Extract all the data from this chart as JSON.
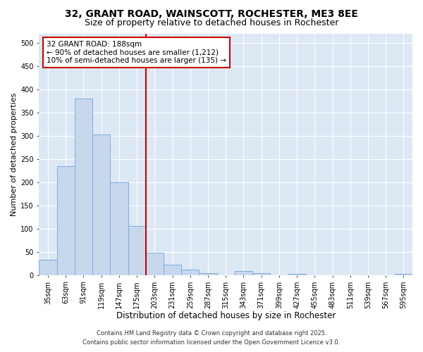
{
  "title_line1": "32, GRANT ROAD, WAINSCOTT, ROCHESTER, ME3 8EE",
  "title_line2": "Size of property relative to detached houses in Rochester",
  "xlabel": "Distribution of detached houses by size in Rochester",
  "ylabel": "Number of detached properties",
  "categories": [
    "35sqm",
    "63sqm",
    "91sqm",
    "119sqm",
    "147sqm",
    "175sqm",
    "203sqm",
    "231sqm",
    "259sqm",
    "287sqm",
    "315sqm",
    "343sqm",
    "371sqm",
    "399sqm",
    "427sqm",
    "455sqm",
    "483sqm",
    "511sqm",
    "539sqm",
    "567sqm",
    "595sqm"
  ],
  "values": [
    33,
    235,
    380,
    302,
    200,
    106,
    48,
    22,
    12,
    5,
    0,
    9,
    4,
    0,
    2,
    0,
    0,
    0,
    0,
    0,
    3
  ],
  "bar_color": "#c8d8ec",
  "bar_edge_color": "#7aabe0",
  "vline_x_index": 6,
  "vline_color": "#cc0000",
  "annotation_line1": "32 GRANT ROAD: 188sqm",
  "annotation_line2": "← 90% of detached houses are smaller (1,212)",
  "annotation_line3": "10% of semi-detached houses are larger (135) →",
  "annotation_box_color": "#cc0000",
  "annotation_box_fill": "#ffffff",
  "ylim": [
    0,
    520
  ],
  "yticks": [
    0,
    50,
    100,
    150,
    200,
    250,
    300,
    350,
    400,
    450,
    500
  ],
  "background_color": "#dde8f5",
  "grid_color": "#ffffff",
  "footer_line1": "Contains HM Land Registry data © Crown copyright and database right 2025.",
  "footer_line2": "Contains public sector information licensed under the Open Government Licence v3.0.",
  "title_fontsize": 10,
  "subtitle_fontsize": 9,
  "xlabel_fontsize": 8.5,
  "ylabel_fontsize": 8,
  "tick_fontsize": 7,
  "annot_fontsize": 7.5,
  "footer_fontsize": 6
}
